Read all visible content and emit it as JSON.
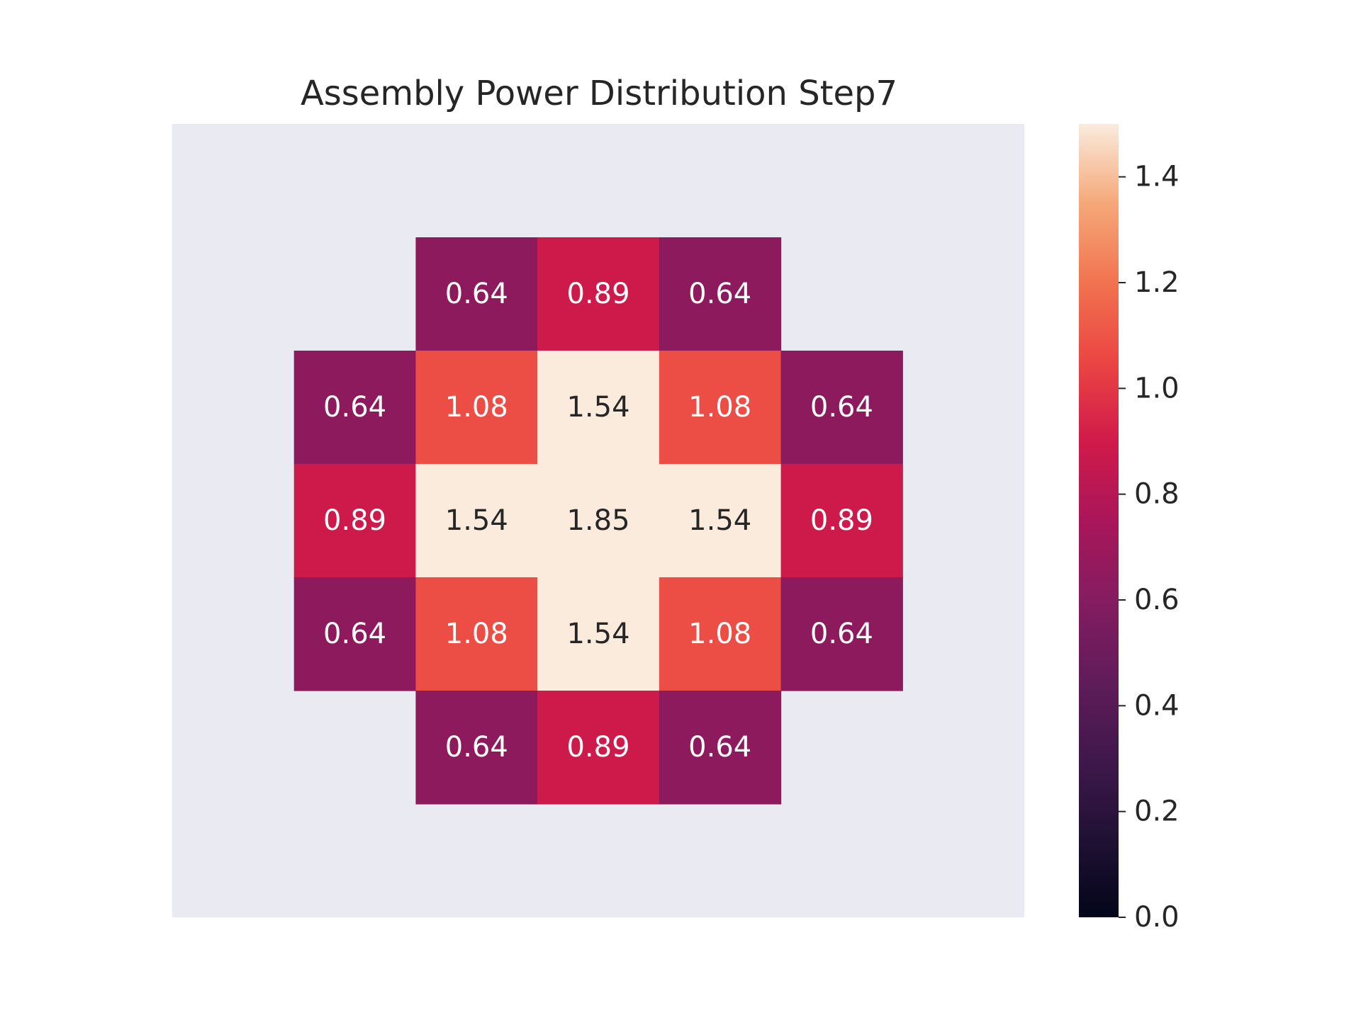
{
  "chart_data": {
    "type": "heatmap",
    "title": "Assembly Power Distribution Step7",
    "xlabel": "",
    "ylabel": "",
    "rows": 7,
    "cols": 7,
    "values": [
      [
        null,
        null,
        null,
        null,
        null,
        null,
        null
      ],
      [
        null,
        null,
        0.64,
        0.89,
        0.64,
        null,
        null
      ],
      [
        null,
        0.64,
        1.08,
        1.54,
        1.08,
        0.64,
        null
      ],
      [
        null,
        0.89,
        1.54,
        1.85,
        1.54,
        0.89,
        null
      ],
      [
        null,
        0.64,
        1.08,
        1.54,
        1.08,
        0.64,
        null
      ],
      [
        null,
        null,
        0.64,
        0.89,
        0.64,
        null,
        null
      ],
      [
        null,
        null,
        null,
        null,
        null,
        null,
        null
      ]
    ],
    "labels": [
      [
        "",
        "",
        "",
        "",
        "",
        "",
        ""
      ],
      [
        "",
        "",
        "0.64",
        "0.89",
        "0.64",
        "",
        ""
      ],
      [
        "",
        "0.64",
        "1.08",
        "1.54",
        "1.08",
        "0.64",
        ""
      ],
      [
        "",
        "0.89",
        "1.54",
        "1.85",
        "1.54",
        "0.89",
        ""
      ],
      [
        "",
        "0.64",
        "1.08",
        "1.54",
        "1.08",
        "0.64",
        ""
      ],
      [
        "",
        "",
        "0.64",
        "0.89",
        "0.64",
        "",
        ""
      ],
      [
        "",
        "",
        "",
        "",
        "",
        "",
        ""
      ]
    ],
    "colorbar": {
      "range": [
        0,
        1.5
      ],
      "ticks": [
        0.0,
        0.2,
        0.4,
        0.6,
        0.8,
        1.0,
        1.2,
        1.4
      ],
      "tick_labels": [
        "0.0",
        "0.2",
        "0.4",
        "0.6",
        "0.8",
        "1.0",
        "1.2",
        "1.4"
      ],
      "colormap": "rocket"
    },
    "grid": false,
    "background_color": "#eaeaf2",
    "text_color_dark": "#262626",
    "text_color_light": "#ffffff"
  }
}
